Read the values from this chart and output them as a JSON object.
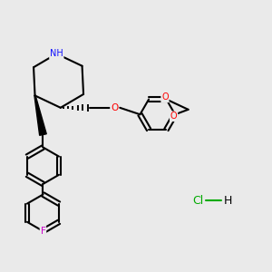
{
  "bg_color": "#EAEAEA",
  "bond_color": "#000000",
  "bond_width": 1.5,
  "N_color": "#1010FF",
  "O_color": "#FF0000",
  "F_color": "#CC00CC",
  "Cl_color": "#00AA00",
  "xlim": [
    0,
    10
  ],
  "ylim": [
    0,
    10
  ]
}
